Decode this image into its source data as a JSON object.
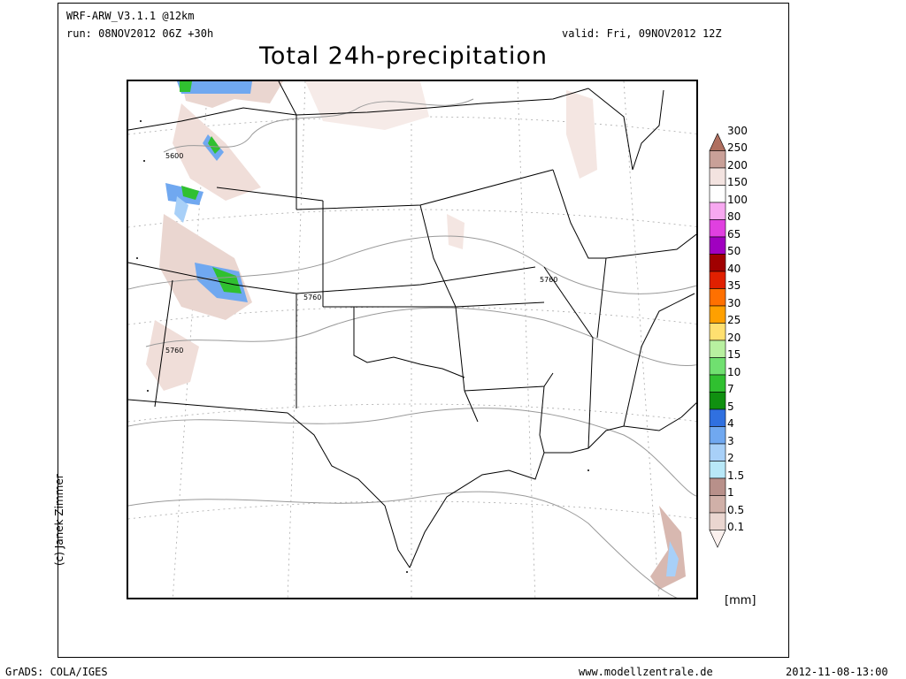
{
  "header": {
    "model": "WRF-ARW_V3.1.1 @12km",
    "run": "run: 08NOV2012 06Z +30h",
    "valid": "valid: Fri, 09NOV2012 12Z",
    "title": "Total 24h-precipitation"
  },
  "contour_labels": [
    "5600",
    "5760",
    "5760",
    "5760"
  ],
  "copyright": "(c) Janek Zimmer",
  "footer": {
    "left": "GrADS: COLA/IGES",
    "center": "www.modellzentrale.de",
    "right": "2012-11-08-13:00"
  },
  "legend": {
    "unit": "[mm]",
    "levels": [
      {
        "label": "300",
        "color": "#b07060"
      },
      {
        "label": "250",
        "color": "#c9a098"
      },
      {
        "label": "200",
        "color": "#f3e3e0"
      },
      {
        "label": "150",
        "color": "#ffffff"
      },
      {
        "label": "100",
        "color": "#f7a8f0"
      },
      {
        "label": "80",
        "color": "#e040e0"
      },
      {
        "label": "65",
        "color": "#a000c0"
      },
      {
        "label": "50",
        "color": "#a00000"
      },
      {
        "label": "40",
        "color": "#e02000"
      },
      {
        "label": "35",
        "color": "#ff7000"
      },
      {
        "label": "30",
        "color": "#ffa000"
      },
      {
        "label": "25",
        "color": "#ffe070"
      },
      {
        "label": "20",
        "color": "#b8f0a0"
      },
      {
        "label": "15",
        "color": "#70e070"
      },
      {
        "label": "10",
        "color": "#30c030"
      },
      {
        "label": "7",
        "color": "#109010"
      },
      {
        "label": "5",
        "color": "#3070e0"
      },
      {
        "label": "4",
        "color": "#70a8f0"
      },
      {
        "label": "3",
        "color": "#a8d0f8"
      },
      {
        "label": "2",
        "color": "#b8e8f8"
      },
      {
        "label": "1.5",
        "color": "#b8908a"
      },
      {
        "label": "1",
        "color": "#d0b0a8"
      },
      {
        "label": "0.5",
        "color": "#ead6d0"
      },
      {
        "label": "0.1",
        "color": "#fbf1ee"
      }
    ]
  }
}
